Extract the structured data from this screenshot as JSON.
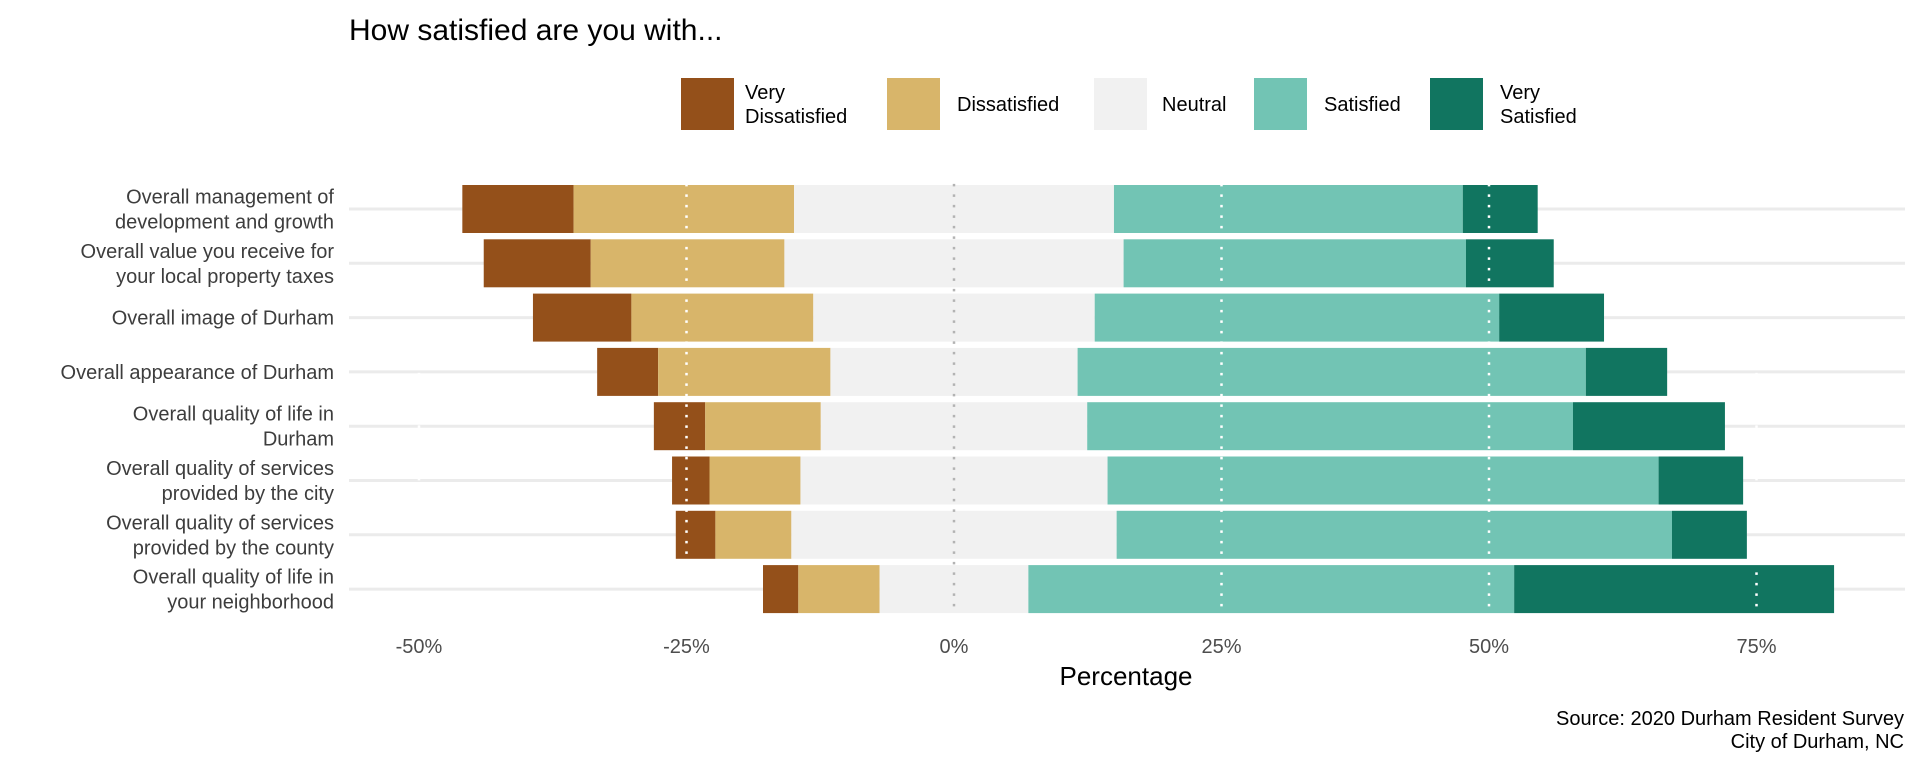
{
  "chart_data": {
    "type": "bar",
    "orientation": "horizontal",
    "stacking": "diverging",
    "title": "How satisfied are you with...",
    "xlabel": "Percentage",
    "ylabel": "",
    "caption": [
      "Source: 2020 Durham Resident Survey",
      "City of Durham, NC"
    ],
    "xlim": [
      -52,
      85
    ],
    "x_ticks": [
      -50,
      -25,
      0,
      25,
      50,
      75
    ],
    "x_tick_labels": [
      "-50%",
      "-25%",
      "0%",
      "25%",
      "50%",
      "75%"
    ],
    "reference_lines": {
      "center": 0,
      "dotted": [
        -50,
        -25,
        25,
        50,
        75
      ]
    },
    "grid": "horizontal",
    "legend": {
      "position": "top",
      "entries": [
        {
          "label": [
            "Very",
            "Dissatisfied"
          ],
          "color": "#94501a"
        },
        {
          "label": [
            "Dissatisfied"
          ],
          "color": "#d8b56a"
        },
        {
          "label": [
            "Neutral"
          ],
          "color": "#f1f1f1"
        },
        {
          "label": [
            "Satisfied"
          ],
          "color": "#72c4b4"
        },
        {
          "label": [
            "Very",
            "Satisfied"
          ],
          "color": "#117560"
        }
      ]
    },
    "series_names": [
      "Very Dissatisfied",
      "Dissatisfied",
      "Neutral",
      "Satisfied",
      "Very Satisfied"
    ],
    "categories": [
      [
        "Overall management of",
        "development and growth"
      ],
      [
        "Overall value you receive for",
        "your local property taxes"
      ],
      [
        "Overall image of Durham"
      ],
      [
        "Overall appearance of Durham"
      ],
      [
        "Overall quality of life in",
        "Durham"
      ],
      [
        "Overall quality of services",
        "provided by the city"
      ],
      [
        "Overall quality of services",
        "provided by the county"
      ],
      [
        "Overall quality of life in",
        "your neighborhood"
      ]
    ],
    "values": [
      [
        10.4,
        20.6,
        29.9,
        32.6,
        7.0
      ],
      [
        10.0,
        18.1,
        31.7,
        32.0,
        8.2
      ],
      [
        9.2,
        17.0,
        26.3,
        37.8,
        9.8
      ],
      [
        5.7,
        16.1,
        23.1,
        47.5,
        7.6
      ],
      [
        4.8,
        10.8,
        24.9,
        45.4,
        14.2
      ],
      [
        3.5,
        8.5,
        28.7,
        51.5,
        7.9
      ],
      [
        3.7,
        7.1,
        30.4,
        51.9,
        7.0
      ],
      [
        3.3,
        7.6,
        13.9,
        45.4,
        29.9
      ]
    ]
  }
}
